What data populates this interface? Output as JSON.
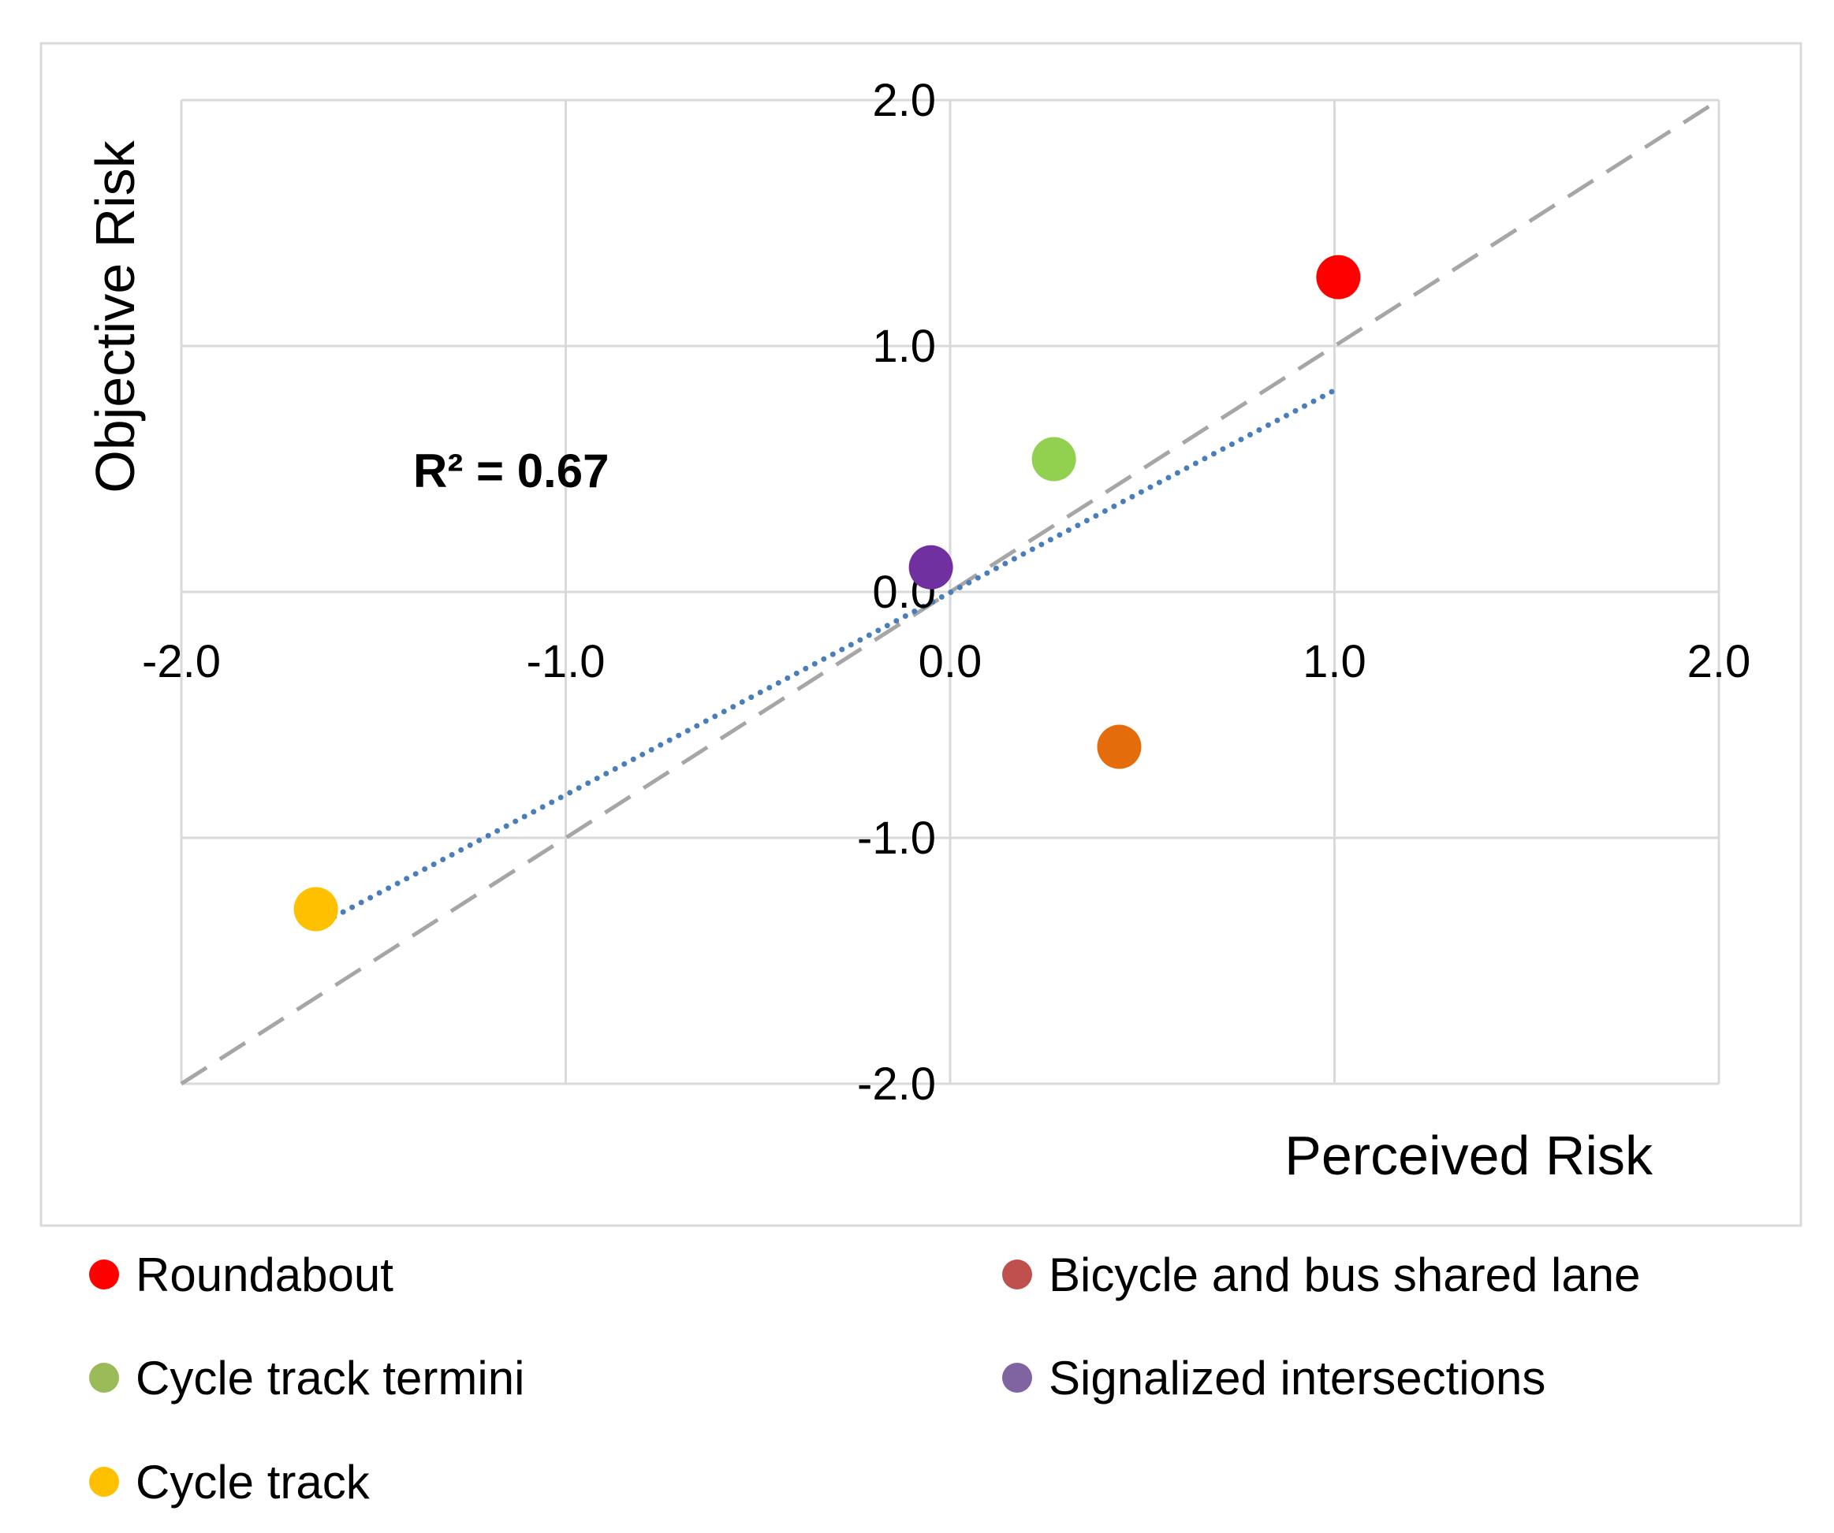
{
  "chart_data": {
    "type": "scatter",
    "xlabel": "Perceived Risk",
    "ylabel": "Objective Risk",
    "xlim": [
      -2.0,
      2.0
    ],
    "ylim": [
      -2.0,
      2.0
    ],
    "grid": true,
    "x_ticks": [
      -2.0,
      -1.0,
      0.0,
      1.0,
      2.0
    ],
    "y_ticks": [
      -2.0,
      -1.0,
      0.0,
      1.0,
      2.0
    ],
    "x_tick_labels": [
      "-2.0",
      "-1.0",
      "0.0",
      "1.0",
      "2.0"
    ],
    "y_tick_labels": [
      "-2.0",
      "-1.0",
      "0.0",
      "1.0",
      "2.0"
    ],
    "series": [
      {
        "name": "Roundabout",
        "color": "#ff0000",
        "x": 1.01,
        "y": 1.28
      },
      {
        "name": "Bicycle and bus shared lane",
        "color": "#e46c0a",
        "legend_color": "#c0504d",
        "x": 0.44,
        "y": -0.63
      },
      {
        "name": "Cycle track termini",
        "color": "#92d050",
        "legend_color": "#9bbb59",
        "x": 0.27,
        "y": 0.54
      },
      {
        "name": "Signalized intersections",
        "color": "#7030a0",
        "legend_color": "#8064a2",
        "x": -0.05,
        "y": 0.1
      },
      {
        "name": "Cycle track",
        "color": "#ffc000",
        "x": -1.65,
        "y": -1.29
      }
    ],
    "reference_line": {
      "type": "y=x",
      "style": "dashed",
      "color": "#a6a6a6",
      "x": [
        -2.0,
        2.0
      ],
      "y": [
        -2.0,
        2.0
      ]
    },
    "trendline": {
      "style": "dotted",
      "color": "#4a7ebb",
      "x": [
        -1.65,
        1.0
      ],
      "y": [
        -1.36,
        0.82
      ]
    },
    "annotations": [
      {
        "text": "R² = 0.67"
      }
    ],
    "legend_position": "bottom"
  }
}
